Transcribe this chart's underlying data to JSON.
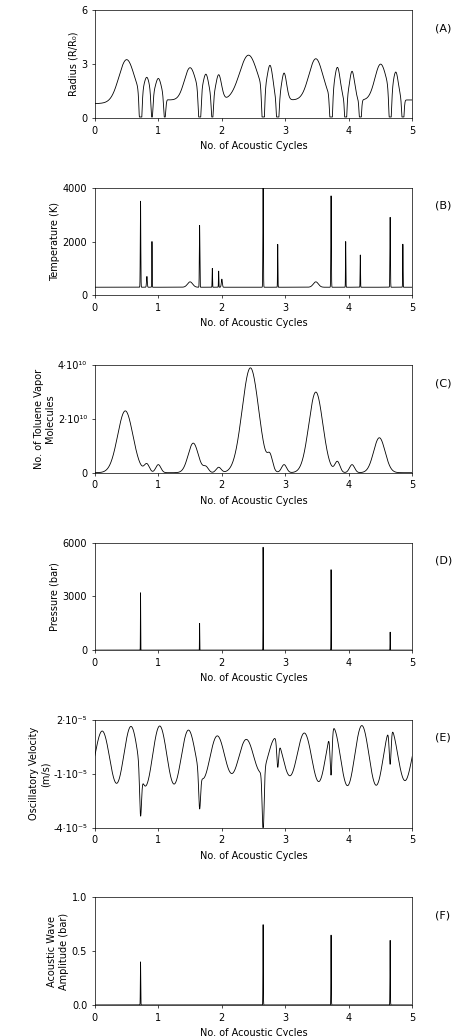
{
  "panels": [
    {
      "label": "A",
      "ylabel": "Radius (R/R₀)",
      "xlabel": "No. of Acoustic Cycles",
      "ylim": [
        0,
        6
      ],
      "yticks": [
        0,
        3,
        6
      ],
      "xlim": [
        0,
        5
      ],
      "xticks": [
        0,
        1,
        2,
        3,
        4,
        5
      ]
    },
    {
      "label": "B",
      "ylabel": "Temperature (K)",
      "xlabel": "No. of Acoustic Cycles",
      "ylim": [
        0,
        4000
      ],
      "yticks": [
        0,
        2000,
        4000
      ],
      "xlim": [
        0,
        5
      ],
      "xticks": [
        0,
        1,
        2,
        3,
        4,
        5
      ]
    },
    {
      "label": "C",
      "ylabel": "No. of Toluene Vapor Molecules",
      "xlabel": "No. of Acoustic Cycles",
      "ylim": [
        0,
        40000000000.0
      ],
      "yticks": [
        0,
        20000000000.0,
        40000000000.0
      ],
      "ytick_labels": [
        "0",
        "2·10¹⁰",
        "4·10¹⁰"
      ],
      "xlim": [
        0,
        5
      ],
      "xticks": [
        0,
        1,
        2,
        3,
        4,
        5
      ]
    },
    {
      "label": "D",
      "ylabel": "Pressure (bar)",
      "xlabel": "No. of Acoustic Cycles",
      "ylim": [
        0,
        6000
      ],
      "yticks": [
        0,
        3000,
        6000
      ],
      "xlim": [
        0,
        5
      ],
      "xticks": [
        0,
        1,
        2,
        3,
        4,
        5
      ]
    },
    {
      "label": "E",
      "ylabel": "Oscillatory Velocity (m/s)",
      "xlabel": "No. of Acoustic Cycles",
      "ylim": [
        -4e-05,
        2e-05
      ],
      "yticks": [
        -4e-05,
        -1e-05,
        2e-05
      ],
      "ytick_labels": [
        "-4·10⁻⁵",
        "-1·10⁻⁵",
        "2·10⁻⁵"
      ],
      "xlim": [
        0,
        5
      ],
      "xticks": [
        0,
        1,
        2,
        3,
        4,
        5
      ]
    },
    {
      "label": "F",
      "ylabel": "Acoustic Wave\nAmplitude (bar)",
      "xlabel": "No. of Acoustic Cycles",
      "ylim": [
        0,
        1
      ],
      "yticks": [
        0,
        0.5,
        1
      ],
      "xlim": [
        0,
        5
      ],
      "xticks": [
        0,
        1,
        2,
        3,
        4,
        5
      ]
    }
  ],
  "line_color": "black",
  "line_width": 0.6,
  "bg_color": "white",
  "font_size": 7,
  "label_font_size": 7
}
